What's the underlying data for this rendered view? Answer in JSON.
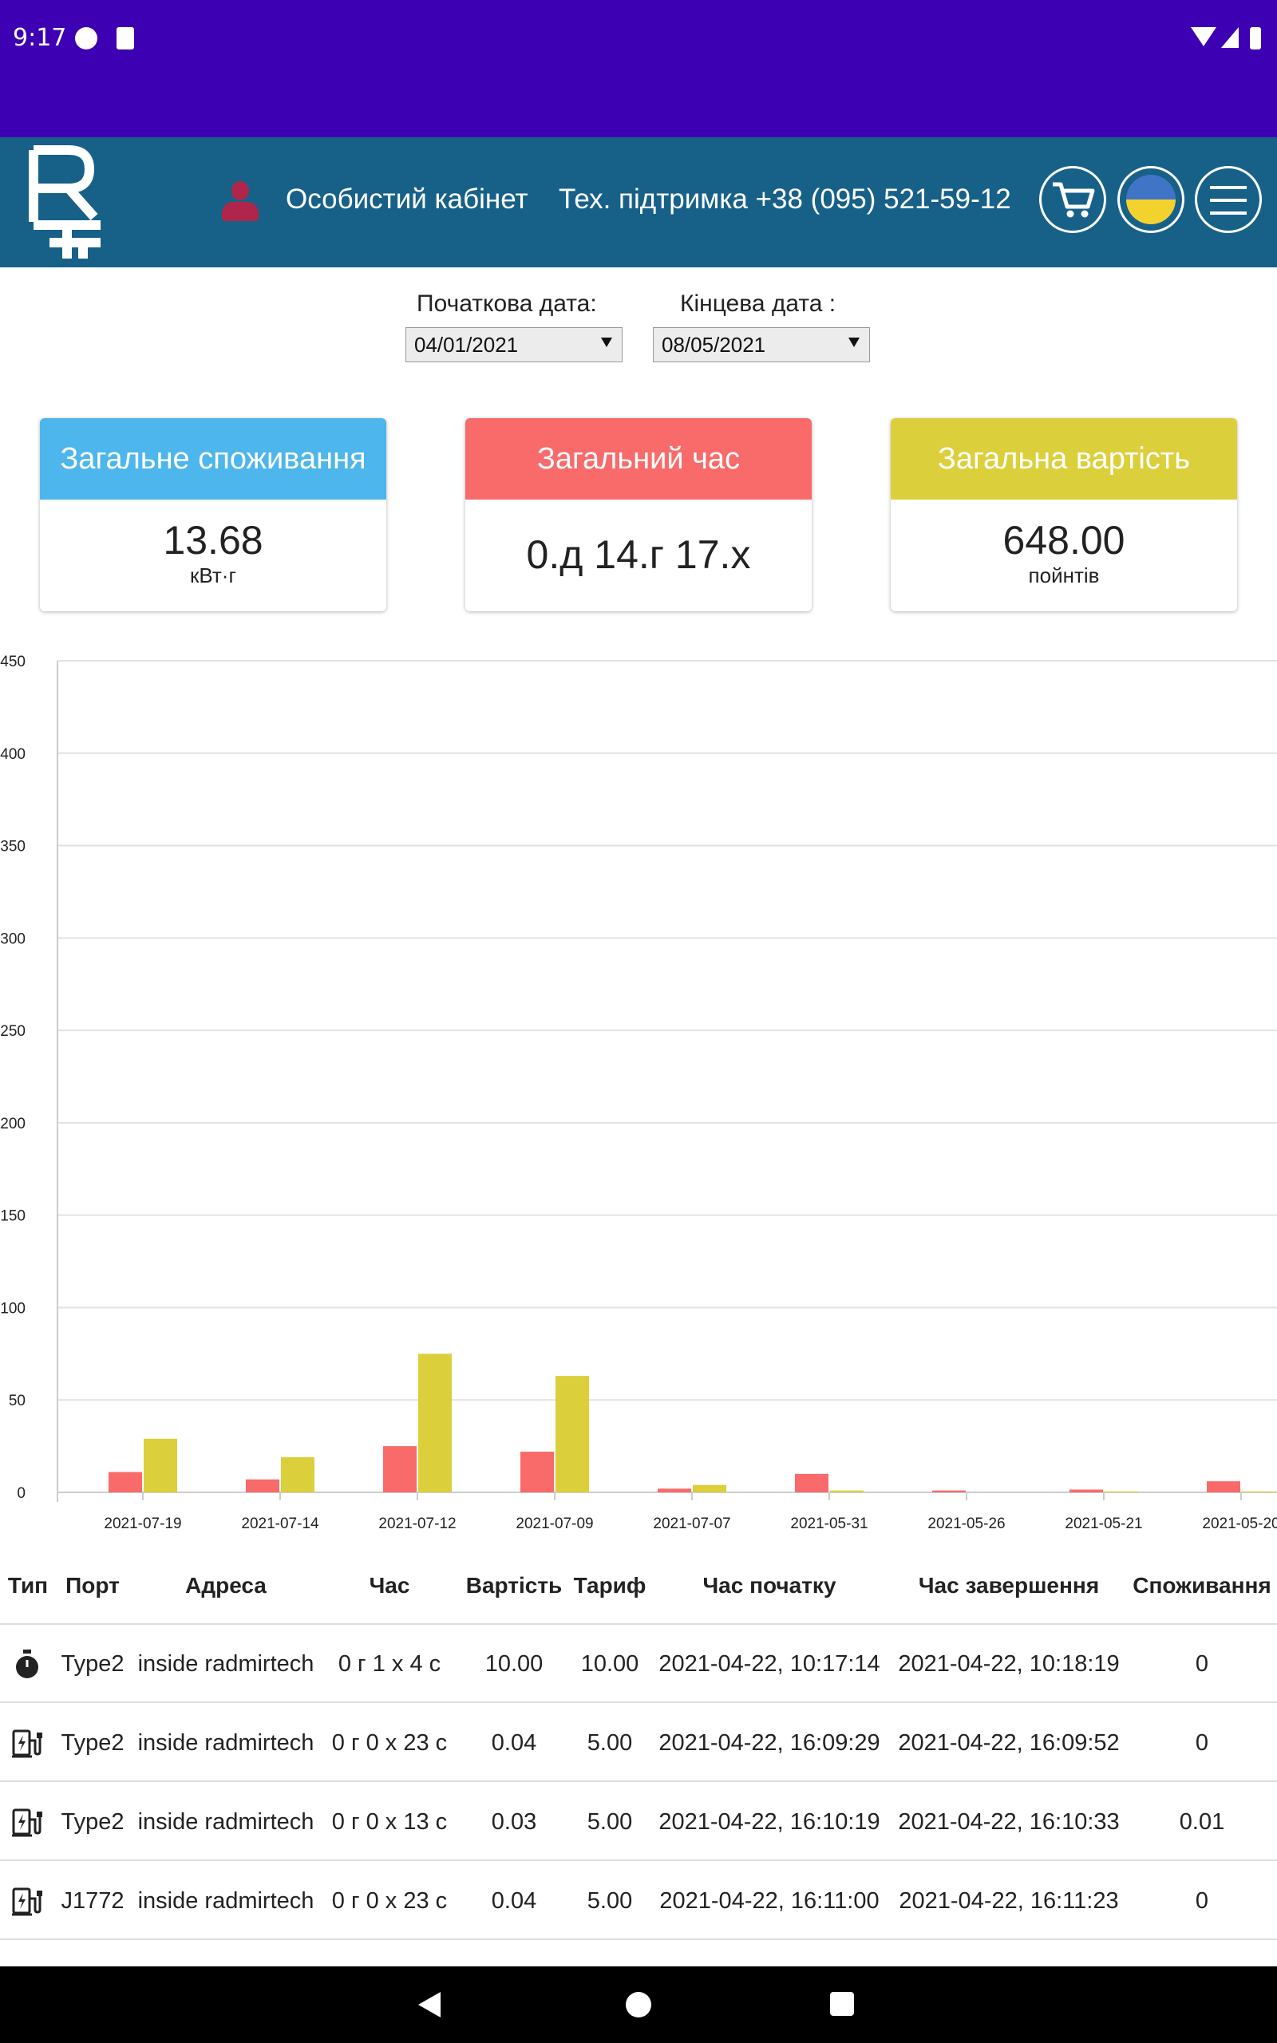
{
  "status_bar": {
    "time": "9:17"
  },
  "header": {
    "cabinet_label": "Особистий кабінет",
    "support_label": "Тех. підтримка +38 (095) 521-59-12"
  },
  "filters": {
    "start_label": "Початкова дата:",
    "start_value": "04/01/2021",
    "end_label": "Кінцева дата :",
    "end_value": "08/05/2021"
  },
  "cards": {
    "consumption": {
      "title": "Загальне споживання",
      "value": "13.68",
      "unit": "кВт·г"
    },
    "time": {
      "title": "Загальний час",
      "value": "0.д 14.г 17.х"
    },
    "cost": {
      "title": "Загальна вартість",
      "value": "648.00",
      "unit": "пойнтів"
    }
  },
  "colors": {
    "red": "#f96a6a",
    "yellow": "#dccf3c",
    "blue": "#4db6ec",
    "nav": "#176189"
  },
  "chart_data": {
    "type": "bar",
    "categories": [
      "2021-07-19",
      "2021-07-14",
      "2021-07-12",
      "2021-07-09",
      "2021-07-07",
      "2021-05-31",
      "2021-05-26",
      "2021-05-21",
      "2021-05-20"
    ],
    "series": [
      {
        "color": "#f96a6a",
        "values": [
          11,
          7,
          25,
          22,
          2,
          10,
          1,
          1.5,
          6
        ]
      },
      {
        "color": "#dccf3c",
        "values": [
          29,
          19,
          75,
          63,
          4,
          1,
          0,
          0.5,
          0.5
        ]
      }
    ],
    "ylim": [
      0,
      450
    ],
    "yticks": [
      0,
      50,
      100,
      150,
      200,
      250,
      300,
      350,
      400,
      450
    ],
    "grid": true
  },
  "table": {
    "headers": [
      "Тип",
      "Порт",
      "Адреса",
      "Час",
      "Вартість",
      "Тариф",
      "Час початку",
      "Час завершення",
      "Споживання"
    ],
    "rows": [
      {
        "icon": "stopwatch-icon",
        "port": "Type2",
        "address": "inside radmirtech",
        "time": "0 г 1 х 4 с",
        "cost": "10.00",
        "tariff": "10.00",
        "start": "2021-04-22, 10:17:14",
        "end": "2021-04-22, 10:18:19",
        "consumption": "0"
      },
      {
        "icon": "charging-station-icon",
        "port": "Type2",
        "address": "inside radmirtech",
        "time": "0 г 0 х 23 с",
        "cost": "0.04",
        "tariff": "5.00",
        "start": "2021-04-22, 16:09:29",
        "end": "2021-04-22, 16:09:52",
        "consumption": "0"
      },
      {
        "icon": "charging-station-icon",
        "port": "Type2",
        "address": "inside radmirtech",
        "time": "0 г 0 х 13 с",
        "cost": "0.03",
        "tariff": "5.00",
        "start": "2021-04-22, 16:10:19",
        "end": "2021-04-22, 16:10:33",
        "consumption": "0.01"
      },
      {
        "icon": "charging-station-icon",
        "port": "J1772",
        "address": "inside radmirtech",
        "time": "0 г 0 х 23 с",
        "cost": "0.04",
        "tariff": "5.00",
        "start": "2021-04-22, 16:11:00",
        "end": "2021-04-22, 16:11:23",
        "consumption": "0"
      }
    ]
  }
}
